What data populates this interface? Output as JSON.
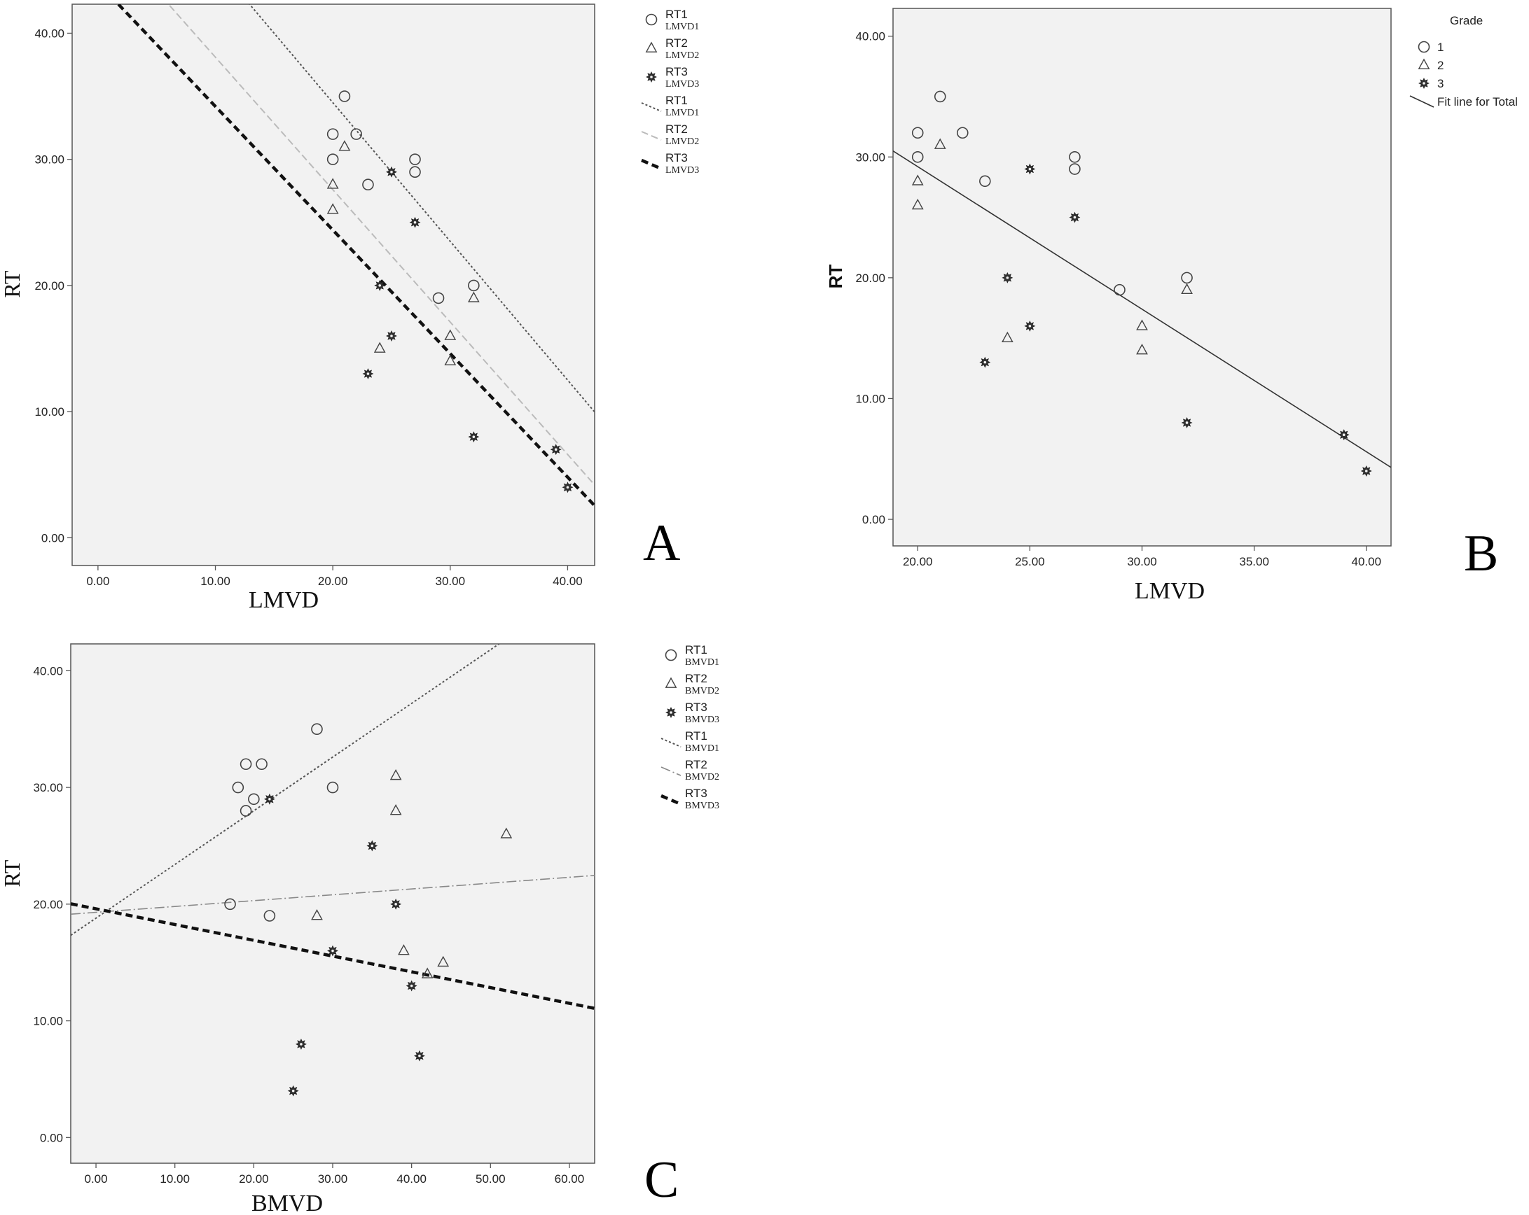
{
  "chart_data": [
    {
      "panel": "A",
      "type": "scatter",
      "xlabel": "LMVD",
      "ylabel": "RT",
      "xlim": [
        -2.2,
        42.3
      ],
      "ylim": [
        -2.2,
        42.3
      ],
      "xticks": [
        "0.00",
        "10.00",
        "20.00",
        "30.00",
        "40.00"
      ],
      "yticks": [
        "0.00",
        "10.00",
        "20.00",
        "30.00",
        "40.00"
      ],
      "grid": false,
      "legend_position": "right",
      "series": [
        {
          "name": "RT1",
          "sub": "LMVD1",
          "marker": "circle",
          "points": [
            [
              20,
              32
            ],
            [
              20,
              30
            ],
            [
              21,
              35
            ],
            [
              22,
              32
            ],
            [
              23,
              28
            ],
            [
              27,
              30
            ],
            [
              27,
              29
            ],
            [
              29,
              19
            ],
            [
              32,
              20
            ]
          ]
        },
        {
          "name": "RT2",
          "sub": "LMVD2",
          "marker": "triangle",
          "points": [
            [
              20,
              28
            ],
            [
              20,
              26
            ],
            [
              21,
              31
            ],
            [
              24,
              15
            ],
            [
              30,
              16
            ],
            [
              30,
              14
            ],
            [
              32,
              19
            ]
          ]
        },
        {
          "name": "RT3",
          "sub": "LMVD3",
          "marker": "star",
          "points": [
            [
              23,
              13
            ],
            [
              24,
              20
            ],
            [
              25,
              29
            ],
            [
              25,
              16
            ],
            [
              27,
              25
            ],
            [
              32,
              8
            ],
            [
              39,
              7
            ],
            [
              40,
              4
            ]
          ]
        }
      ],
      "fit_lines": [
        {
          "name": "RT1",
          "sub": "LMVD1",
          "style": "dotted",
          "intercept": 56.5,
          "slope": -1.1
        },
        {
          "name": "RT2",
          "sub": "LMVD2",
          "style": "dashed-light",
          "intercept": 48.6,
          "slope": -1.05
        },
        {
          "name": "RT3",
          "sub": "LMVD3",
          "style": "dashed-bold",
          "intercept": 44.0,
          "slope": -0.98
        }
      ],
      "panel_label": "A"
    },
    {
      "panel": "B",
      "type": "scatter",
      "xlabel": "LMVD",
      "ylabel": "RT",
      "xlim": [
        18.9,
        41.1
      ],
      "ylim": [
        -2.2,
        42.3
      ],
      "xticks": [
        "20.00",
        "25.00",
        "30.00",
        "35.00",
        "40.00"
      ],
      "yticks": [
        "0.00",
        "10.00",
        "20.00",
        "30.00",
        "40.00"
      ],
      "grid": false,
      "legend_title": "Grade",
      "legend_position": "top-right",
      "series": [
        {
          "name": "1",
          "marker": "circle",
          "points": [
            [
              20,
              32
            ],
            [
              20,
              30
            ],
            [
              21,
              35
            ],
            [
              22,
              32
            ],
            [
              23,
              28
            ],
            [
              27,
              30
            ],
            [
              27,
              29
            ],
            [
              29,
              19
            ],
            [
              32,
              20
            ]
          ]
        },
        {
          "name": "2",
          "marker": "triangle",
          "points": [
            [
              20,
              28
            ],
            [
              20,
              26
            ],
            [
              21,
              31
            ],
            [
              24,
              15
            ],
            [
              30,
              16
            ],
            [
              30,
              14
            ],
            [
              32,
              19
            ]
          ]
        },
        {
          "name": "3",
          "marker": "star",
          "points": [
            [
              23,
              13
            ],
            [
              24,
              20
            ],
            [
              25,
              29
            ],
            [
              25,
              16
            ],
            [
              27,
              25
            ],
            [
              32,
              8
            ],
            [
              39,
              7
            ],
            [
              40,
              4
            ]
          ]
        }
      ],
      "fit_lines": [
        {
          "name": "Fit line for Total",
          "style": "solid",
          "intercept": 52.8,
          "slope": -1.18
        }
      ],
      "panel_label": "B"
    },
    {
      "panel": "C",
      "type": "scatter",
      "xlabel": "BMVD",
      "ylabel": "RT",
      "xlim": [
        -3.2,
        63.2
      ],
      "ylim": [
        -2.2,
        42.3
      ],
      "xticks": [
        "0.00",
        "10.00",
        "20.00",
        "30.00",
        "40.00",
        "50.00",
        "60.00"
      ],
      "yticks": [
        "0.00",
        "10.00",
        "20.00",
        "30.00",
        "40.00"
      ],
      "grid": false,
      "legend_position": "right",
      "series": [
        {
          "name": "RT1",
          "sub": "BMVD1",
          "marker": "circle",
          "points": [
            [
              17,
              20
            ],
            [
              18,
              30
            ],
            [
              19,
              32
            ],
            [
              19,
              28
            ],
            [
              20,
              29
            ],
            [
              21,
              32
            ],
            [
              22,
              19
            ],
            [
              28,
              35
            ],
            [
              30,
              30
            ]
          ]
        },
        {
          "name": "RT2",
          "sub": "BMVD2",
          "marker": "triangle",
          "points": [
            [
              28,
              19
            ],
            [
              38,
              31
            ],
            [
              38,
              28
            ],
            [
              39,
              16
            ],
            [
              42,
              14
            ],
            [
              44,
              15
            ],
            [
              52,
              26
            ]
          ]
        },
        {
          "name": "RT3",
          "sub": "BMVD3",
          "marker": "star",
          "points": [
            [
              22,
              29
            ],
            [
              25,
              4
            ],
            [
              26,
              8
            ],
            [
              30,
              16
            ],
            [
              35,
              25
            ],
            [
              38,
              20
            ],
            [
              40,
              13
            ],
            [
              41,
              7
            ]
          ]
        }
      ],
      "fit_lines": [
        {
          "name": "RT1",
          "sub": "BMVD1",
          "style": "dotted",
          "intercept": 18.8,
          "slope": 0.46
        },
        {
          "name": "RT2",
          "sub": "BMVD2",
          "style": "dashdot",
          "intercept": 19.3,
          "slope": 0.05
        },
        {
          "name": "RT3",
          "sub": "BMVD3",
          "style": "dashed-bold",
          "intercept": 19.6,
          "slope": -0.135
        }
      ],
      "panel_label": "C"
    }
  ]
}
